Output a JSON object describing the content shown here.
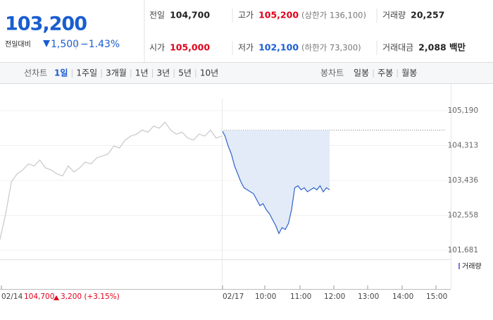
{
  "quote": {
    "price": "103,200",
    "change_label": "전일대비",
    "change": "1,500",
    "change_rate": "−1.43%",
    "color": "#1a5dd0"
  },
  "summary": [
    [
      {
        "label": "전일",
        "value": "104,700",
        "color": "#222222"
      },
      {
        "label": "고가",
        "value": "105,200",
        "note": "(상한가 136,100)",
        "color": "#e0001b"
      },
      {
        "label": "거래량",
        "value": "20,257",
        "color": "#222222"
      }
    ],
    [
      {
        "label": "시가",
        "value": "105,000",
        "color": "#e0001b"
      },
      {
        "label": "저가",
        "value": "102,100",
        "note": "(하한가 73,300)",
        "color": "#1a5dd0"
      },
      {
        "label": "거래대금",
        "value": "2,088 백만",
        "color": "#222222"
      }
    ]
  ],
  "tabs": {
    "line_label": "선차트",
    "line": [
      "1일",
      "1주일",
      "3개월",
      "1년",
      "3년",
      "5년",
      "10년"
    ],
    "candle_label": "봉차트",
    "candle": [
      "일봉",
      "주봉",
      "월봉"
    ]
  },
  "chart_data": {
    "type": "line",
    "ylim": [
      101592,
      105491
    ],
    "yticks": [
      {
        "value": 105190,
        "label": "105,190"
      },
      {
        "value": 104313,
        "label": "104,313"
      },
      {
        "value": 103436,
        "label": "103,436"
      },
      {
        "value": 102558,
        "label": "102,558"
      },
      {
        "value": 101681,
        "label": "101,681"
      }
    ],
    "previous_close": 104700,
    "series": [
      {
        "color": "#c8c8c8",
        "values": [
          101950,
          102600,
          103400,
          103600,
          103700,
          103850,
          103800,
          103950,
          103750,
          103700,
          103600,
          103550,
          103800,
          103650,
          103750,
          103900,
          103850,
          104000,
          104050,
          104100,
          104300,
          104250,
          104450,
          104550,
          104600,
          104700,
          104650,
          104800,
          104750,
          104900,
          104700,
          104600,
          104650,
          104500,
          104450,
          104600,
          104550,
          104700,
          104500,
          104550
        ]
      },
      {
        "color": "#2e63c9",
        "fill": "#e3ebf8",
        "values": [
          104700,
          104550,
          104300,
          104100,
          103800,
          103600,
          103400,
          103250,
          103200,
          103150,
          103100,
          102950,
          102800,
          102850,
          102700,
          102600,
          102450,
          102300,
          102100,
          102250,
          102200,
          102350,
          102700,
          103250,
          103300,
          103200,
          103250,
          103150,
          103200,
          103250,
          103200,
          103300,
          103150,
          103250,
          103200
        ]
      }
    ],
    "volume_legend": "거래량",
    "x_labels": [
      "02/14",
      "02/17",
      "10:00",
      "11:00",
      "12:00",
      "13:00",
      "14:00",
      "15:00"
    ],
    "previous_day": {
      "close": "104,700",
      "change": "3,200 (+3.15%)",
      "color": "#e0001b"
    }
  }
}
